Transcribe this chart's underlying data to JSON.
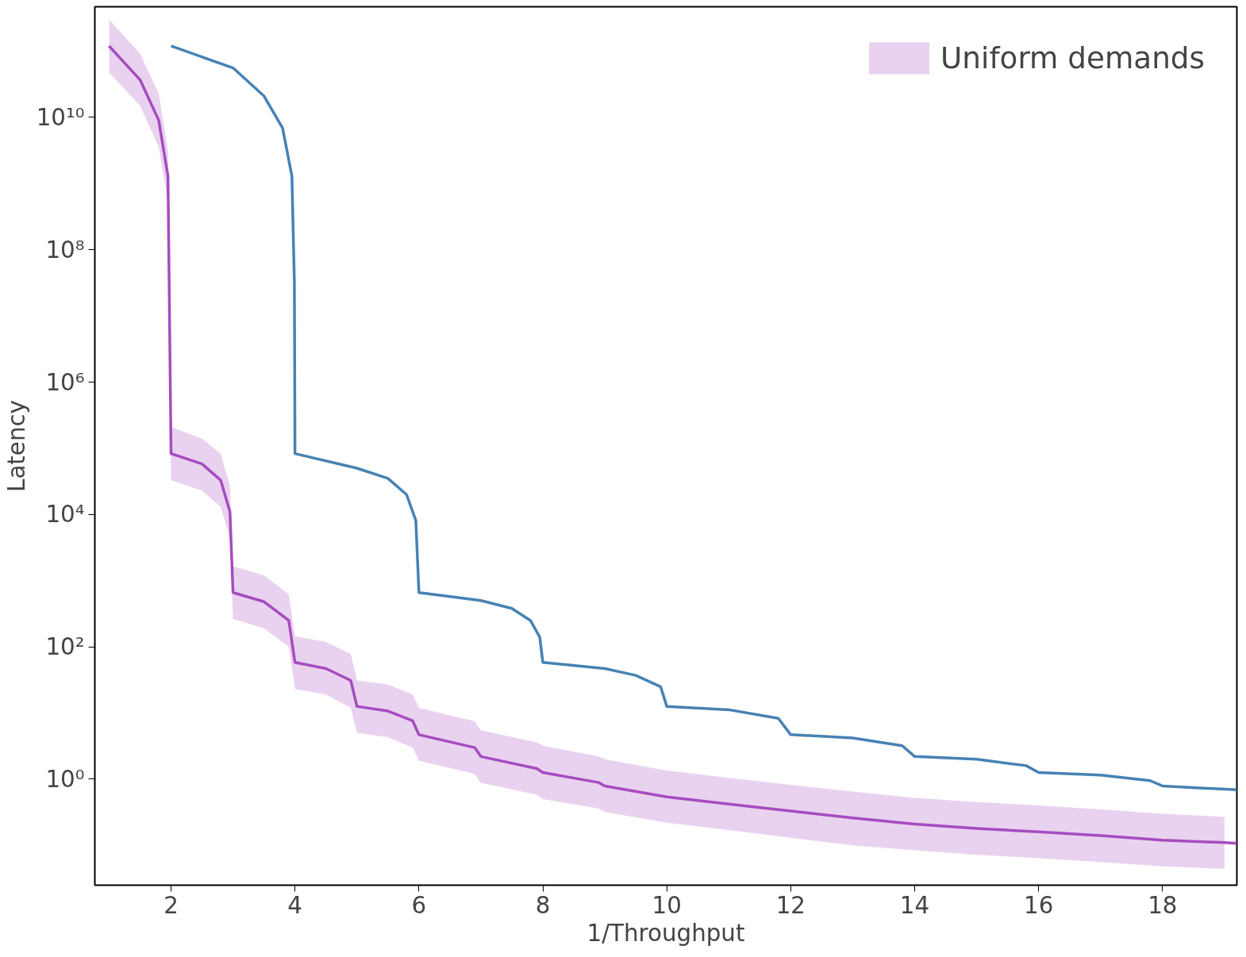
{
  "chart_data": {
    "type": "line",
    "xlabel": "1/Throughput",
    "ylabel": "Latency",
    "log": "y",
    "grid": false,
    "legend": "top right",
    "marker": "none",
    "line_style": "solid",
    "xlim": [
      0.77,
      19.2
    ],
    "ylim": [
      0.025,
      470000000000.0
    ],
    "xticks": [
      2,
      4,
      6,
      8,
      10,
      12,
      14,
      16,
      18
    ],
    "yticks": [
      {
        "value": 1,
        "label": "10⁰"
      },
      {
        "value": 100,
        "label": "10²"
      },
      {
        "value": 10000,
        "label": "10⁴"
      },
      {
        "value": 1000000,
        "label": "10⁶"
      },
      {
        "value": 100000000,
        "label": "10⁸"
      },
      {
        "value": 10000000000,
        "label": "10¹⁰"
      }
    ],
    "series": [
      {
        "color": "#4682b4",
        "x": [
          2,
          3,
          3.5,
          3.8,
          3.95,
          3.99,
          4,
          5,
          5.5,
          5.8,
          5.95,
          6,
          7,
          7.5,
          7.8,
          7.95,
          8,
          9,
          9.5,
          9.9,
          10,
          11,
          11.8,
          12,
          13,
          13.8,
          14,
          15,
          15.8,
          16,
          17,
          17.8,
          18,
          19.2
        ],
        "values": [
          120000000000.0,
          56000000000.0,
          21000000000.0,
          6900000000.0,
          1300000000.0,
          32000000.0,
          83000.0,
          50000.0,
          35000.0,
          20000.0,
          8100.0,
          660,
          500,
          380,
          250,
          140,
          58,
          47,
          37,
          25,
          12.6,
          11.2,
          8.3,
          4.7,
          4.2,
          3.2,
          2.2,
          2.0,
          1.6,
          1.26,
          1.15,
          0.95,
          0.79,
          0.69
        ]
      },
      {
        "name": "Uniform demands",
        "color": "#a64cbf",
        "x": [
          1,
          1.5,
          1.8,
          1.95,
          2,
          2.5,
          2.8,
          2.95,
          3,
          3.5,
          3.9,
          4,
          4.5,
          4.9,
          5,
          5.5,
          5.9,
          6,
          6.9,
          7,
          7.9,
          8,
          8.9,
          9,
          10,
          11,
          12,
          13,
          14,
          15,
          16,
          17,
          18,
          19,
          19.2
        ],
        "values": [
          120000000000.0,
          37000000000.0,
          9100000000.0,
          1300000000.0,
          83000.0,
          58000.0,
          33000.0,
          11000.0,
          660,
          480,
          250,
          58,
          47,
          31,
          12.6,
          10.7,
          7.6,
          4.7,
          3.0,
          2.2,
          1.45,
          1.26,
          0.89,
          0.79,
          0.54,
          0.42,
          0.33,
          0.26,
          0.21,
          0.18,
          0.16,
          0.14,
          0.12,
          0.11,
          0.107
        ],
        "upper": [
          300000000000.0,
          92000000000.0,
          23000000000.0,
          3200000000.0,
          210000.0,
          140000.0,
          82000.0,
          27000.0,
          1650,
          1200,
          620,
          145,
          118,
          78,
          31,
          27,
          19,
          12,
          7.5,
          5.5,
          3.6,
          3.2,
          2.2,
          2.0,
          1.35,
          1.05,
          0.82,
          0.65,
          0.52,
          0.45,
          0.4,
          0.35,
          0.3,
          0.27,
          null
        ],
        "lower": [
          48000000000.0,
          15000000000.0,
          3600000000.0,
          520000000.0,
          33000.0,
          23000.0,
          13000.0,
          4400.0,
          264,
          190,
          100,
          23,
          19,
          12,
          5.0,
          4.3,
          3.0,
          1.9,
          1.2,
          0.88,
          0.58,
          0.5,
          0.36,
          0.32,
          0.22,
          0.17,
          0.13,
          0.1,
          0.084,
          0.072,
          0.064,
          0.056,
          0.048,
          0.044,
          null
        ]
      }
    ]
  }
}
